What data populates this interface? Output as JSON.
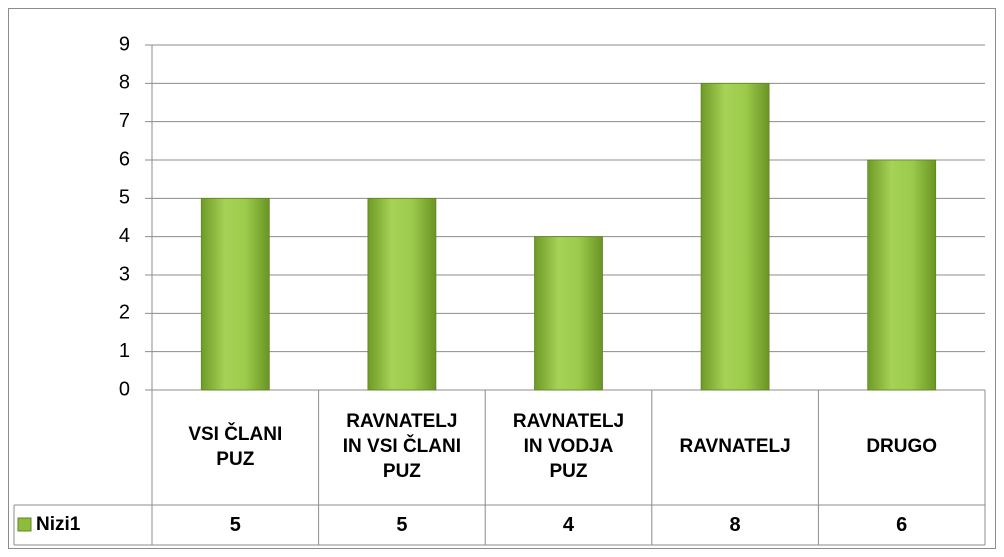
{
  "chart_data": {
    "type": "bar",
    "categories": [
      "VSI ČLANI PUZ",
      "RAVNATELJ IN VSI ČLANI PUZ",
      "RAVNATELJ IN VODJA PUZ",
      "RAVNATELJ",
      "DRUGO"
    ],
    "series": [
      {
        "name": "Nizi1",
        "color": "#8fbc3a",
        "values": [
          5,
          5,
          4,
          8,
          6
        ]
      }
    ],
    "ylim": [
      0,
      9
    ],
    "yticks": [
      0,
      1,
      2,
      3,
      4,
      5,
      6,
      7,
      8,
      9
    ],
    "grid": true,
    "data_table": true
  }
}
